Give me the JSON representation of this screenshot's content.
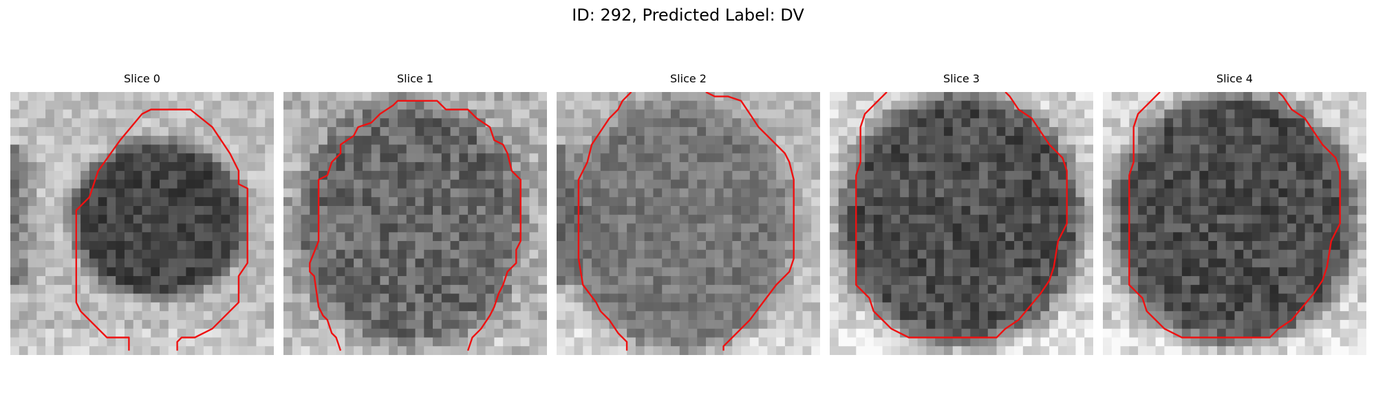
{
  "figure": {
    "title": "ID: 292, Predicted Label: DV"
  },
  "panels": [
    {
      "title": "Slice 0"
    },
    {
      "title": "Slice 1"
    },
    {
      "title": "Slice 2"
    },
    {
      "title": "Slice 3"
    },
    {
      "title": "Slice 4"
    }
  ],
  "colors": {
    "contour": "#ee1111",
    "background": "#ffffff"
  }
}
